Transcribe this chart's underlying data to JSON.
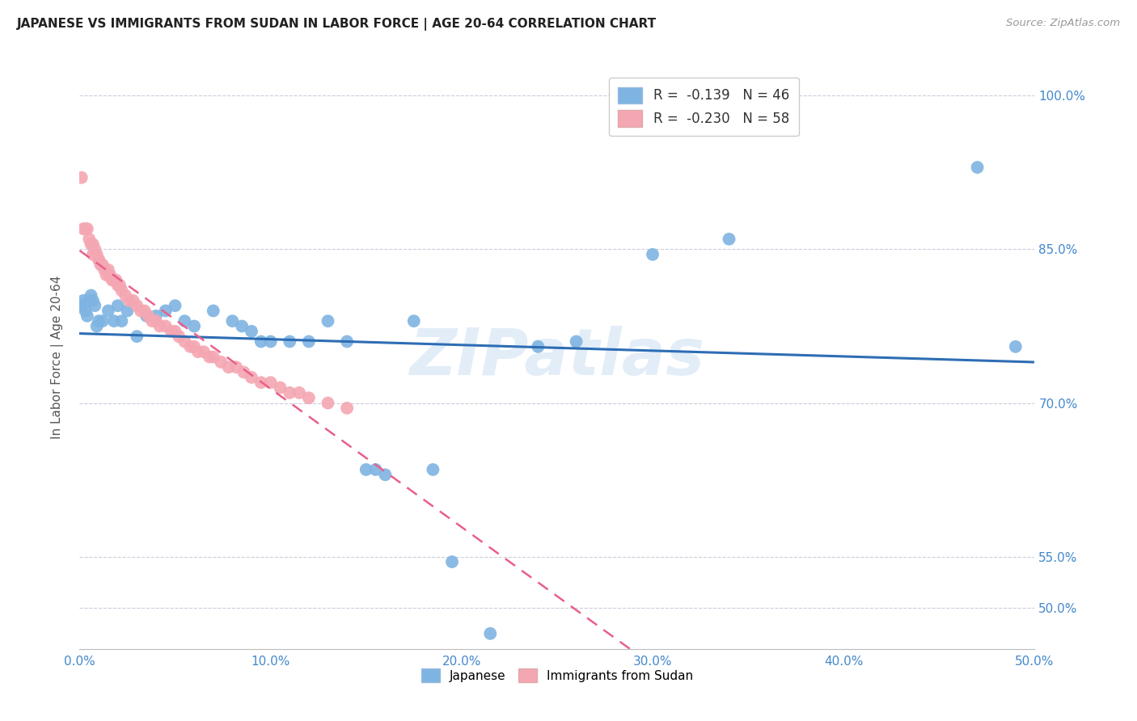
{
  "title": "JAPANESE VS IMMIGRANTS FROM SUDAN IN LABOR FORCE | AGE 20-64 CORRELATION CHART",
  "source": "Source: ZipAtlas.com",
  "ylabel": "In Labor Force | Age 20-64",
  "xlim": [
    0.0,
    0.5
  ],
  "ylim": [
    0.46,
    1.03
  ],
  "yticks": [
    0.5,
    0.55,
    0.7,
    0.85,
    1.0
  ],
  "ytick_labels": [
    "50.0%",
    "55.0%",
    "70.0%",
    "85.0%",
    "100.0%"
  ],
  "xtick_labels": [
    "0.0%",
    "10.0%",
    "20.0%",
    "30.0%",
    "40.0%",
    "50.0%"
  ],
  "xticks": [
    0.0,
    0.1,
    0.2,
    0.3,
    0.4,
    0.5
  ],
  "legend_R_japanese": "-0.139",
  "legend_N_japanese": "46",
  "legend_R_sudan": "-0.230",
  "legend_N_sudan": "58",
  "color_japanese": "#7EB4E2",
  "color_sudan": "#F4A7B2",
  "color_trend_japanese": "#2E6DB4",
  "color_trend_sudan": "#E8608A",
  "watermark": "ZIPatlas",
  "japanese_x": [
    0.001,
    0.002,
    0.003,
    0.004,
    0.005,
    0.006,
    0.007,
    0.008,
    0.009,
    0.01,
    0.012,
    0.015,
    0.018,
    0.02,
    0.022,
    0.025,
    0.03,
    0.035,
    0.04,
    0.045,
    0.05,
    0.055,
    0.06,
    0.07,
    0.08,
    0.085,
    0.09,
    0.095,
    0.1,
    0.11,
    0.12,
    0.13,
    0.14,
    0.15,
    0.155,
    0.16,
    0.175,
    0.185,
    0.195,
    0.215,
    0.24,
    0.26,
    0.3,
    0.34,
    0.47,
    0.49
  ],
  "japanese_y": [
    0.795,
    0.8,
    0.79,
    0.785,
    0.8,
    0.805,
    0.8,
    0.795,
    0.775,
    0.78,
    0.78,
    0.79,
    0.78,
    0.795,
    0.78,
    0.79,
    0.765,
    0.785,
    0.785,
    0.79,
    0.795,
    0.78,
    0.775,
    0.79,
    0.78,
    0.775,
    0.77,
    0.76,
    0.76,
    0.76,
    0.76,
    0.78,
    0.76,
    0.635,
    0.635,
    0.63,
    0.78,
    0.635,
    0.545,
    0.475,
    0.755,
    0.76,
    0.845,
    0.86,
    0.93,
    0.755
  ],
  "sudan_x": [
    0.001,
    0.002,
    0.003,
    0.004,
    0.005,
    0.006,
    0.007,
    0.007,
    0.008,
    0.009,
    0.01,
    0.01,
    0.011,
    0.012,
    0.013,
    0.014,
    0.015,
    0.016,
    0.017,
    0.018,
    0.019,
    0.02,
    0.021,
    0.022,
    0.024,
    0.026,
    0.028,
    0.03,
    0.032,
    0.034,
    0.036,
    0.038,
    0.04,
    0.042,
    0.045,
    0.048,
    0.05,
    0.052,
    0.055,
    0.058,
    0.06,
    0.062,
    0.065,
    0.068,
    0.07,
    0.074,
    0.078,
    0.082,
    0.086,
    0.09,
    0.095,
    0.1,
    0.105,
    0.11,
    0.115,
    0.12,
    0.13,
    0.14
  ],
  "sudan_y": [
    0.92,
    0.87,
    0.87,
    0.87,
    0.86,
    0.855,
    0.855,
    0.845,
    0.85,
    0.845,
    0.84,
    0.84,
    0.835,
    0.835,
    0.83,
    0.825,
    0.83,
    0.825,
    0.82,
    0.82,
    0.82,
    0.815,
    0.815,
    0.81,
    0.805,
    0.8,
    0.8,
    0.795,
    0.79,
    0.79,
    0.785,
    0.78,
    0.78,
    0.775,
    0.775,
    0.77,
    0.77,
    0.765,
    0.76,
    0.755,
    0.755,
    0.75,
    0.75,
    0.745,
    0.745,
    0.74,
    0.735,
    0.735,
    0.73,
    0.725,
    0.72,
    0.72,
    0.715,
    0.71,
    0.71,
    0.705,
    0.7,
    0.695
  ]
}
